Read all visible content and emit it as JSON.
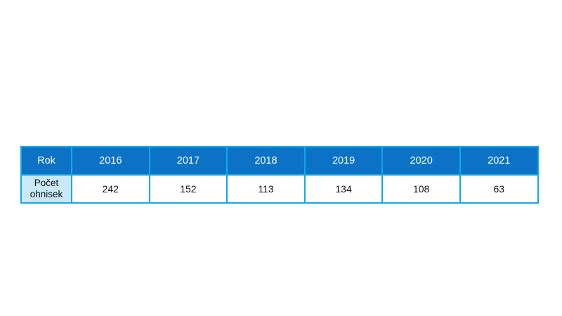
{
  "chart_data": {
    "type": "table",
    "header_label": "Rok",
    "row_label_line1": "Počet",
    "row_label_line2": "ohnisek",
    "categories": [
      "2016",
      "2017",
      "2018",
      "2019",
      "2020",
      "2021"
    ],
    "values": [
      242,
      152,
      113,
      134,
      108,
      63
    ]
  },
  "colors": {
    "header_background": "#0b72c6",
    "row_label_background": "#c9e8f8",
    "border": "#11a8e8"
  }
}
